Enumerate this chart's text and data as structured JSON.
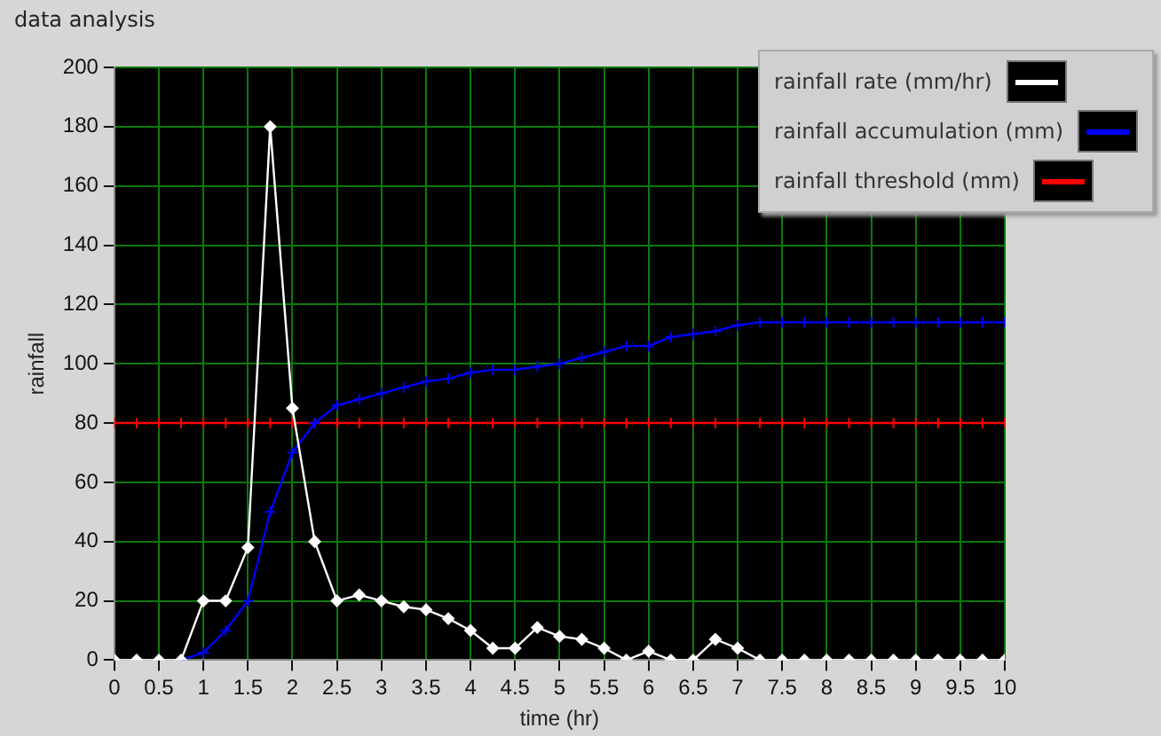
{
  "chart_data": {
    "type": "line",
    "title": "data analysis",
    "xlabel": "time (hr)",
    "ylabel": "rainfall",
    "x": [
      0,
      0.25,
      0.5,
      0.75,
      1,
      1.25,
      1.5,
      1.75,
      2,
      2.25,
      2.5,
      2.75,
      3,
      3.25,
      3.5,
      3.75,
      4,
      4.25,
      4.5,
      4.75,
      5,
      5.25,
      5.5,
      5.75,
      6,
      6.25,
      6.5,
      6.75,
      7,
      7.25,
      7.5,
      7.75,
      8,
      8.25,
      8.5,
      8.75,
      9,
      9.25,
      9.5,
      9.75,
      10
    ],
    "series": [
      {
        "name": "rainfall rate (mm/hr)",
        "color": "#ffffff",
        "marker": "diamond",
        "values": [
          0,
          0,
          0,
          0,
          20,
          20,
          38,
          180,
          85,
          40,
          20,
          22,
          20,
          18,
          17,
          14,
          10,
          4,
          4,
          11,
          8,
          7,
          4,
          0,
          3,
          0,
          0,
          7,
          4,
          0,
          0,
          0,
          0,
          0,
          0,
          0,
          0,
          0,
          0,
          0,
          0
        ]
      },
      {
        "name": "rainfall accumulation (mm)",
        "color": "#0000ff",
        "marker": "cross",
        "values": [
          null,
          null,
          null,
          0,
          2.5,
          10,
          20,
          50,
          70,
          80,
          86,
          88,
          90,
          92,
          94,
          95,
          97,
          98,
          98,
          99,
          100,
          102,
          104,
          106,
          106,
          109,
          110,
          111,
          113,
          114,
          114,
          114,
          114,
          114,
          114,
          114,
          114,
          114,
          114,
          114,
          114
        ]
      },
      {
        "name": "rainfall threshold (mm)",
        "color": "#ff0000",
        "marker": "cross",
        "values": [
          80,
          80,
          80,
          80,
          80,
          80,
          80,
          80,
          80,
          80,
          80,
          80,
          80,
          80,
          80,
          80,
          80,
          80,
          80,
          80,
          80,
          80,
          80,
          80,
          80,
          80,
          80,
          80,
          80,
          80,
          80,
          80,
          80,
          80,
          80,
          80,
          80,
          80,
          80,
          80,
          80
        ]
      }
    ],
    "xlim": [
      0,
      10
    ],
    "xticks": [
      0,
      0.5,
      1,
      1.5,
      2,
      2.5,
      3,
      3.5,
      4,
      4.5,
      5,
      5.5,
      6,
      6.5,
      7,
      7.5,
      8,
      8.5,
      9,
      9.5,
      10
    ],
    "ylim": [
      0,
      200
    ],
    "yticks": [
      0,
      20,
      40,
      60,
      80,
      100,
      120,
      140,
      160,
      180,
      200
    ],
    "grid": true,
    "legend": "top right",
    "line_style": "solid"
  }
}
